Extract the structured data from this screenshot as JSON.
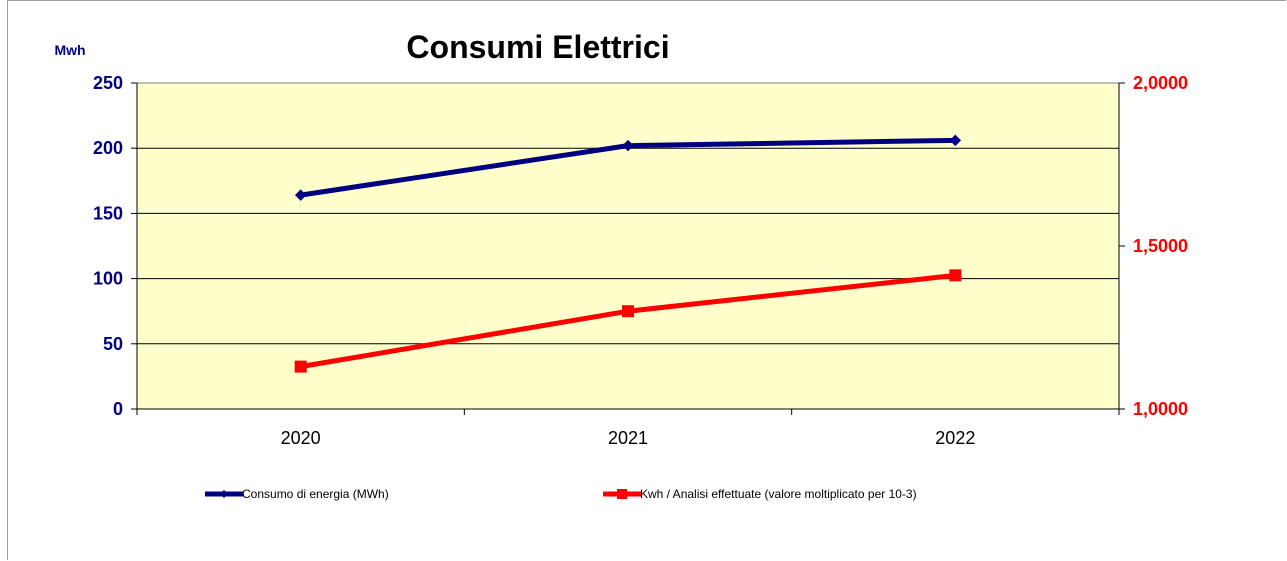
{
  "chart_data": {
    "type": "line",
    "title": "Consumi Elettrici",
    "ylabel": "Mwh",
    "categories": [
      "2020",
      "2021",
      "2022"
    ],
    "ylim": [
      0,
      250
    ],
    "y2lim": [
      1.0,
      2.0
    ],
    "yticks": [
      "0",
      "50",
      "100",
      "150",
      "200",
      "250"
    ],
    "y2ticks": [
      "1,0000",
      "1,5000",
      "2,0000"
    ],
    "grid": true,
    "legend_position": "bottom",
    "plot_background": "#ffffcc",
    "series": [
      {
        "name": "Consumo di energia (MWh)",
        "axis": "left",
        "color": "#000080",
        "marker": "diamond",
        "values": [
          164,
          202,
          206
        ]
      },
      {
        "name": "Kwh / Analisi effettuate (valore moltiplicato per 10-3)",
        "axis": "right",
        "color": "#ff0000",
        "marker": "square",
        "values": [
          1.13,
          1.3,
          1.41
        ]
      }
    ]
  }
}
